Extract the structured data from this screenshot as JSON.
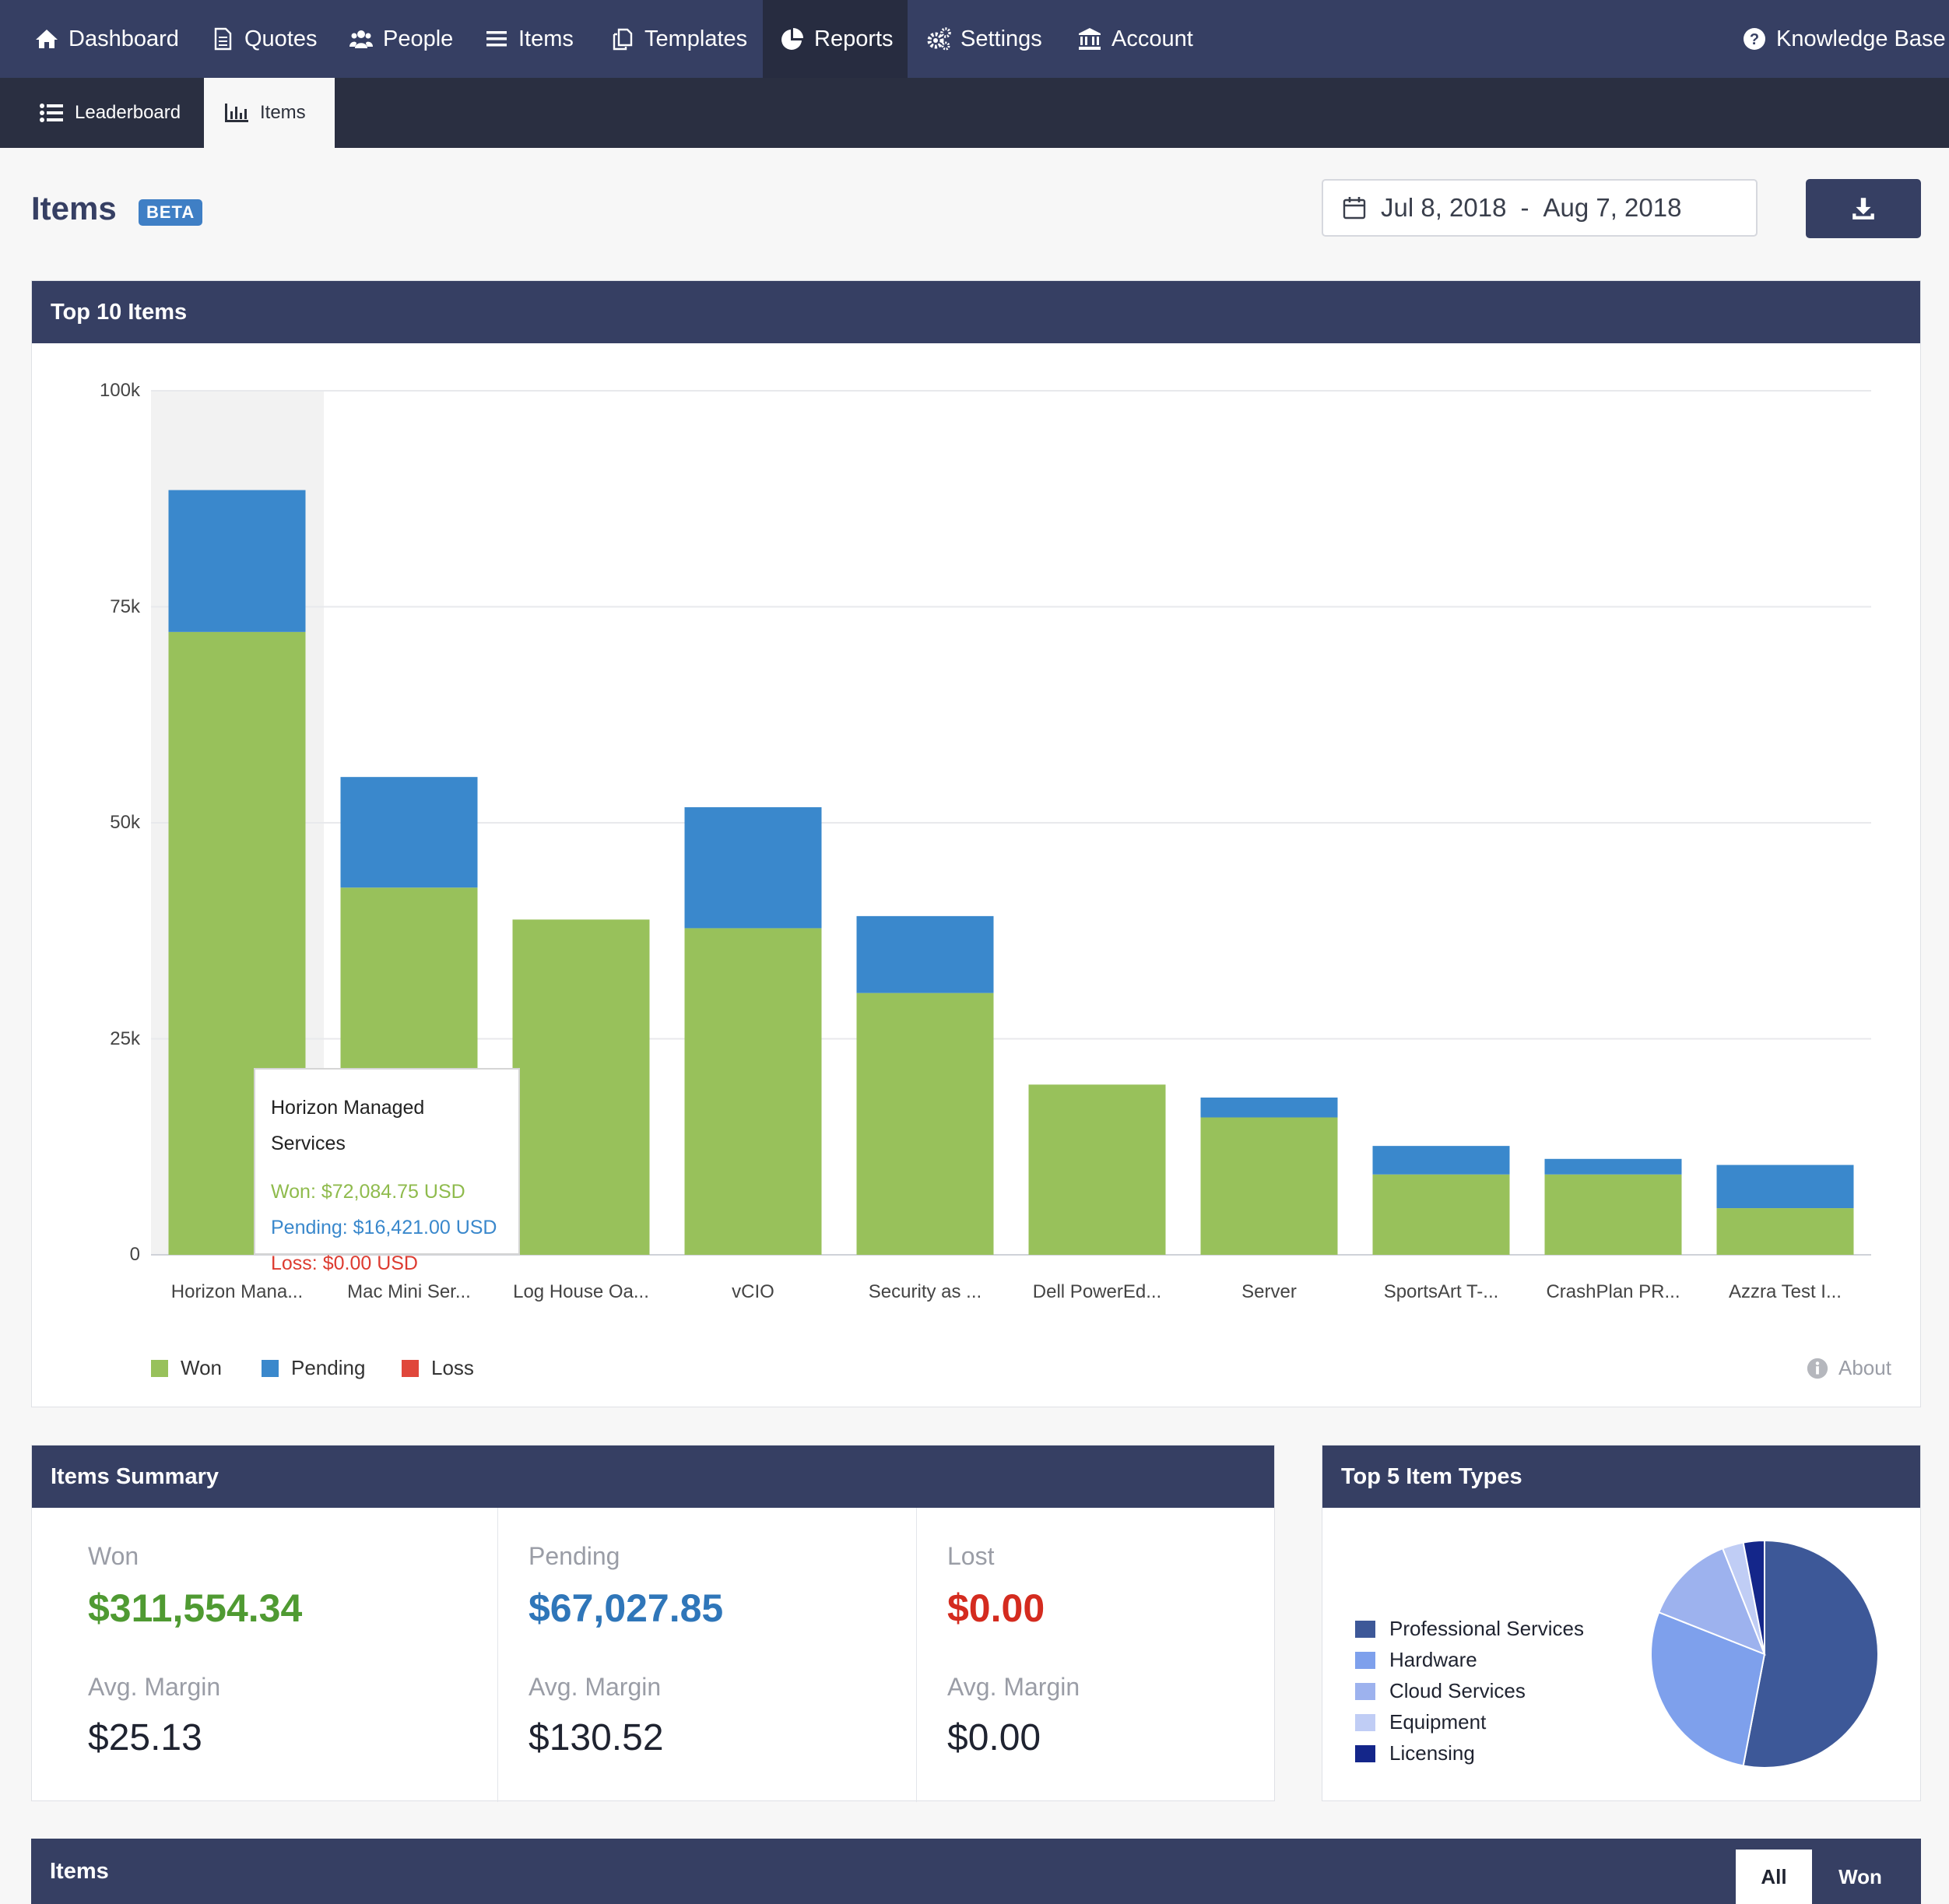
{
  "nav": {
    "items": [
      {
        "label": "Dashboard",
        "icon": "home-icon"
      },
      {
        "label": "Quotes",
        "icon": "document-icon"
      },
      {
        "label": "People",
        "icon": "people-icon"
      },
      {
        "label": "Items",
        "icon": "list-icon"
      },
      {
        "label": "Templates",
        "icon": "templates-icon"
      },
      {
        "label": "Reports",
        "icon": "pie-chart-icon",
        "active": true
      },
      {
        "label": "Settings",
        "icon": "gears-icon"
      },
      {
        "label": "Account",
        "icon": "bank-icon"
      }
    ],
    "knowledge_base": "Knowledge Base"
  },
  "subnav": {
    "leaderboard": "Leaderboard",
    "items": "Items"
  },
  "header": {
    "title": "Items",
    "badge": "BETA",
    "date_start": "Jul 8, 2018",
    "date_sep": "-",
    "date_end": "Aug 7, 2018"
  },
  "top_items": {
    "title": "Top 10 Items",
    "about": "About",
    "tooltip": {
      "title": "Horizon Managed Services",
      "won": "Won: $72,084.75 USD",
      "pending": "Pending: $16,421.00 USD",
      "loss": "Loss: $0.00 USD"
    }
  },
  "chart_data": {
    "type": "bar",
    "stacked": true,
    "categories": [
      "Horizon Mana...",
      "Mac Mini Ser...",
      "Log House Oa...",
      "vCIO",
      "Security as ...",
      "Dell PowerEd...",
      "Server",
      "SportsArt T-...",
      "CrashPlan PR...",
      "Azzra Test I..."
    ],
    "series": [
      {
        "name": "Won",
        "color": "#98c15b",
        "values": [
          72085,
          42500,
          38800,
          37800,
          30300,
          19700,
          15900,
          9300,
          9300,
          5400
        ]
      },
      {
        "name": "Pending",
        "color": "#3a88cc",
        "values": [
          16421,
          12800,
          0,
          14000,
          8900,
          0,
          2300,
          3300,
          1800,
          5000
        ]
      },
      {
        "name": "Loss",
        "color": "#e0473b",
        "values": [
          0,
          0,
          0,
          0,
          0,
          0,
          0,
          0,
          0,
          0
        ]
      }
    ],
    "y_ticks": [
      "0",
      "25k",
      "50k",
      "75k",
      "100k"
    ],
    "ylim": [
      0,
      100000
    ],
    "legend": "bottom-left",
    "grid": true
  },
  "summary": {
    "title": "Items Summary",
    "won": {
      "label": "Won",
      "value": "$311,554.34",
      "margin_label": "Avg. Margin",
      "margin": "$25.13"
    },
    "pending": {
      "label": "Pending",
      "value": "$67,027.85",
      "margin_label": "Avg. Margin",
      "margin": "$130.52"
    },
    "lost": {
      "label": "Lost",
      "value": "$0.00",
      "margin_label": "Avg. Margin",
      "margin": "$0.00"
    }
  },
  "item_types": {
    "title": "Top 5 Item Types",
    "types": [
      {
        "label": "Professional Services",
        "color": "#3d5898",
        "share": 0.53
      },
      {
        "label": "Hardware",
        "color": "#7ea0ec",
        "share": 0.28
      },
      {
        "label": "Cloud Services",
        "color": "#9db2ee",
        "share": 0.13
      },
      {
        "label": "Equipment",
        "color": "#c0cdf5",
        "share": 0.03
      },
      {
        "label": "Licensing",
        "color": "#14268a",
        "share": 0.03
      }
    ]
  },
  "items_table": {
    "title": "Items",
    "filter_all": "All",
    "filter_won": "Won"
  }
}
